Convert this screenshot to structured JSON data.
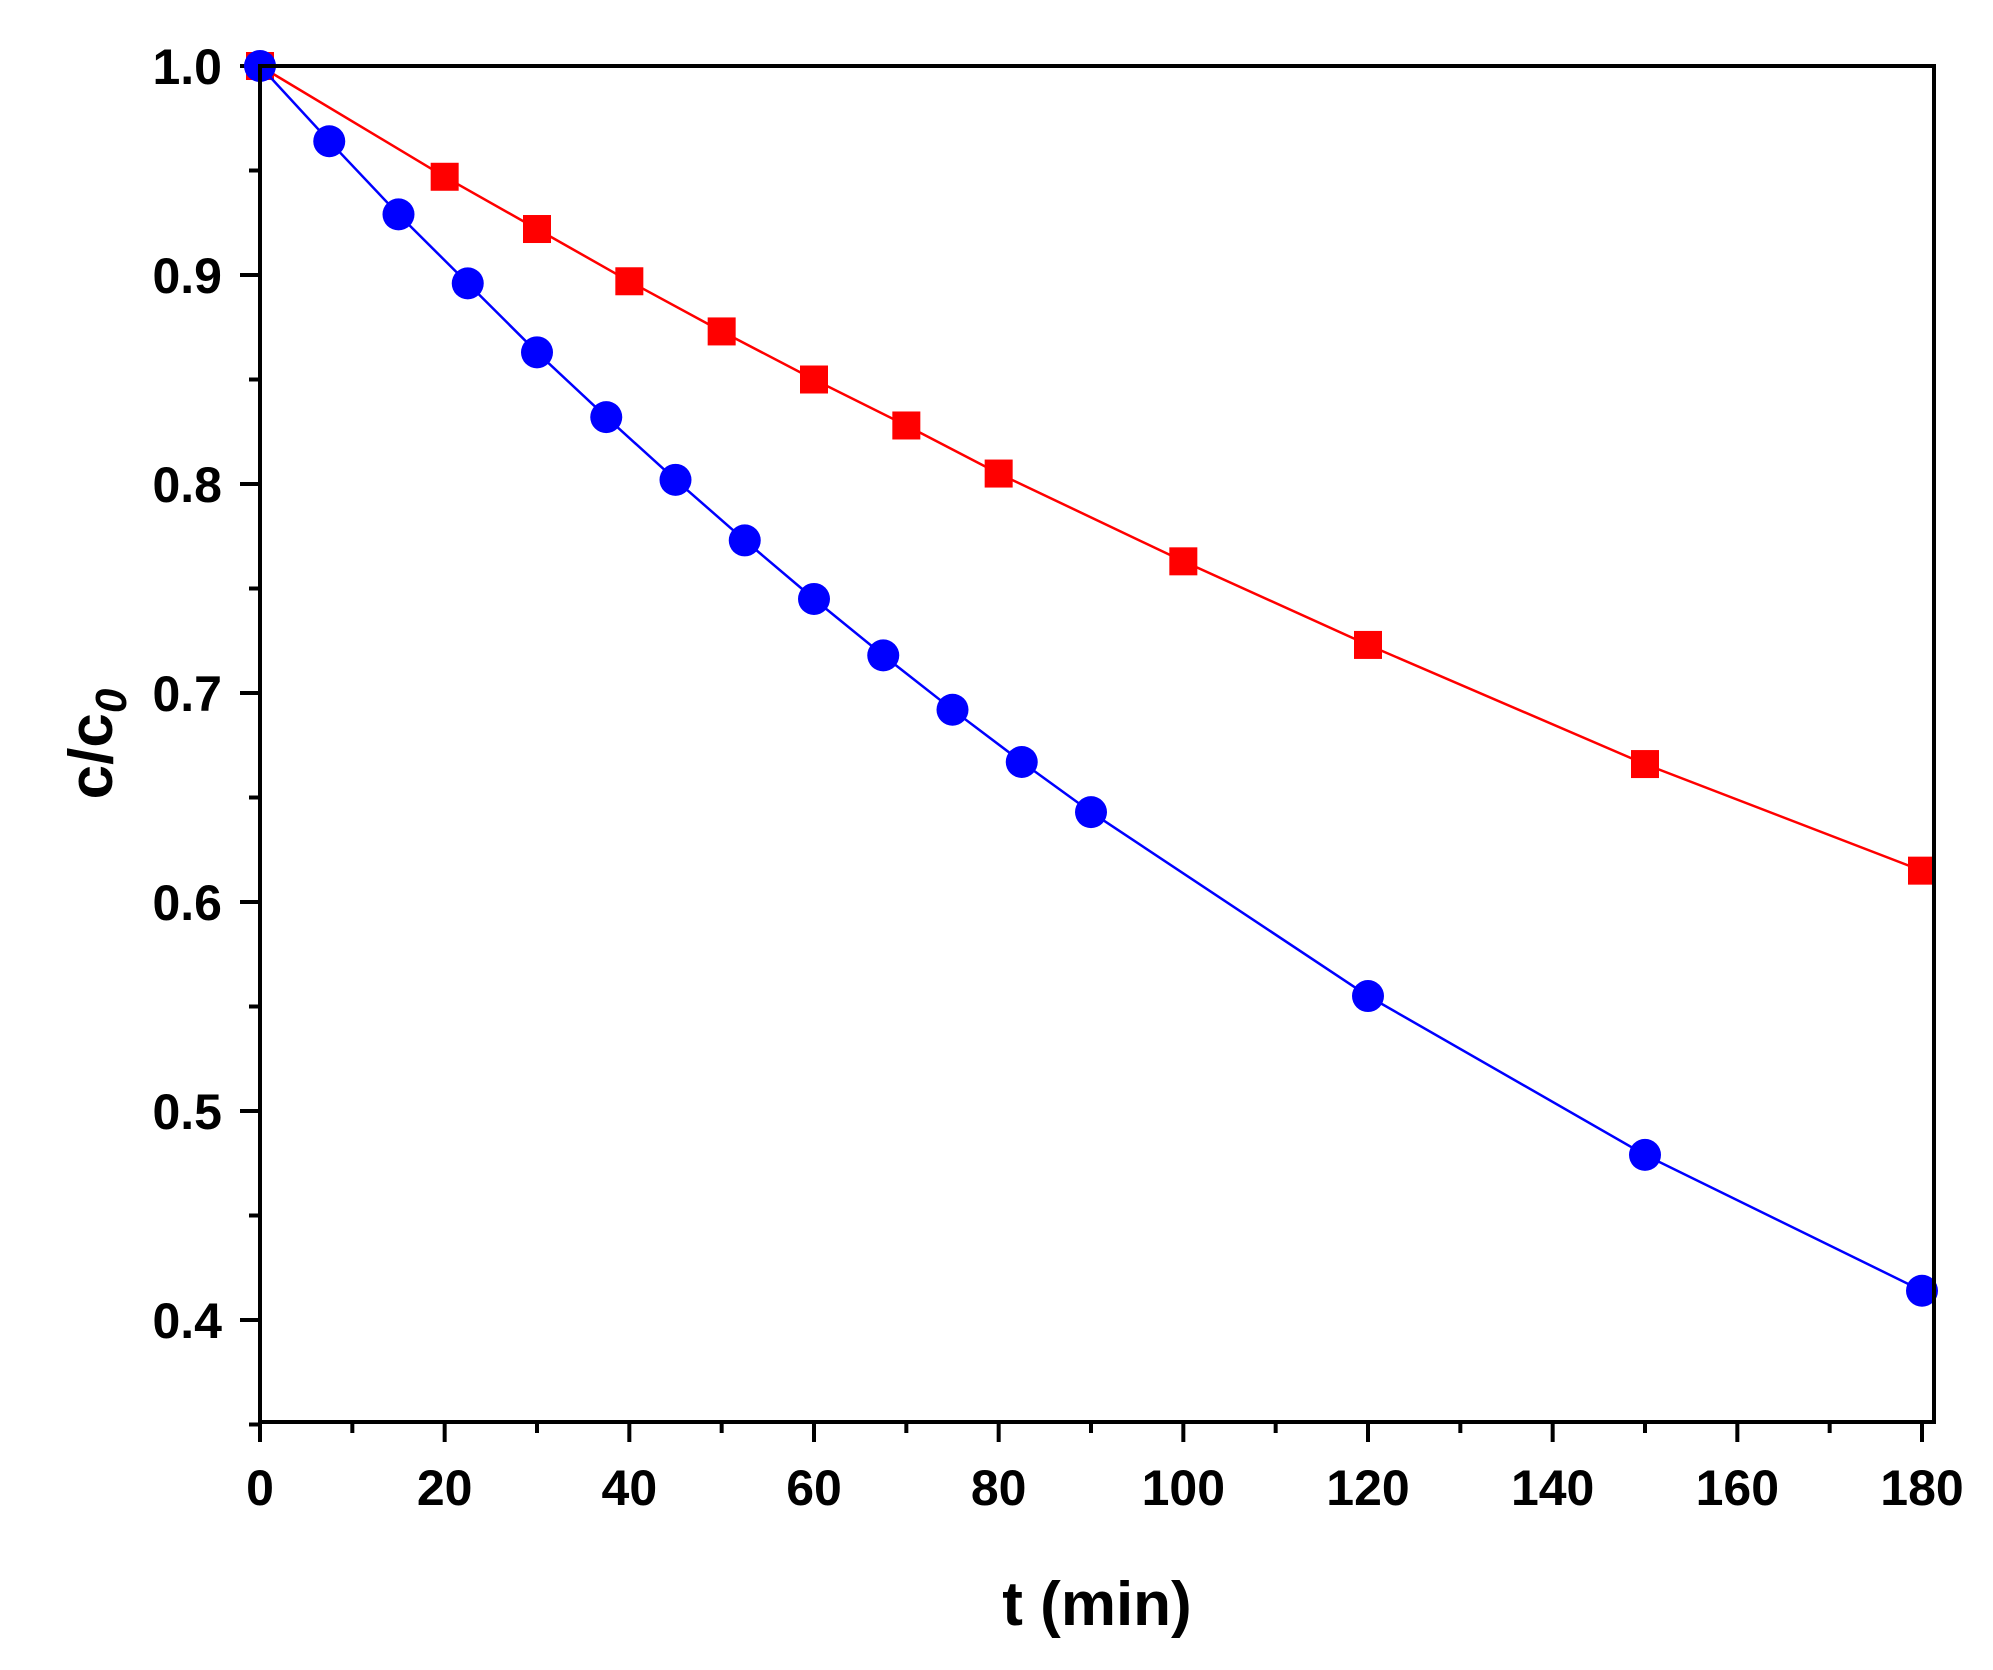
{
  "chart_data": {
    "type": "line",
    "title": "",
    "xlabel": "t (min)",
    "ylabel": {
      "main": "c/c",
      "subscript": "0"
    },
    "xlim": [
      0,
      181
    ],
    "ylim": [
      0.35,
      1.0
    ],
    "x_ticks": [
      0,
      20,
      40,
      60,
      80,
      100,
      120,
      140,
      160,
      180
    ],
    "x_tick_labels": [
      "0",
      "20",
      "40",
      "60",
      "80",
      "100",
      "120",
      "140",
      "160",
      "180"
    ],
    "x_minor_ticks": [
      10,
      30,
      50,
      70,
      90,
      110,
      130,
      150,
      170
    ],
    "y_ticks": [
      0.4,
      0.5,
      0.6,
      0.7,
      0.8,
      0.9,
      1.0
    ],
    "y_tick_labels": [
      "0.4",
      "0.5",
      "0.6",
      "0.7",
      "0.8",
      "0.9",
      "1.0"
    ],
    "y_minor_ticks": [
      0.35,
      0.45,
      0.55,
      0.65,
      0.75,
      0.85,
      0.95
    ],
    "grid": false,
    "legend": "none",
    "series": [
      {
        "name": "red squares",
        "marker": "square",
        "color": "#ff0000",
        "x": [
          0,
          20,
          30,
          40,
          50,
          60,
          70,
          80,
          100,
          120,
          150,
          180
        ],
        "y": [
          1.0,
          0.947,
          0.922,
          0.897,
          0.873,
          0.85,
          0.828,
          0.805,
          0.763,
          0.723,
          0.666,
          0.615
        ]
      },
      {
        "name": "blue circles",
        "marker": "circle",
        "color": "#0000ff",
        "x": [
          0,
          7.5,
          15,
          22.5,
          30,
          37.5,
          45,
          52.5,
          60,
          67.5,
          75,
          82.5,
          90,
          120,
          150,
          180
        ],
        "y": [
          1.0,
          0.964,
          0.929,
          0.896,
          0.863,
          0.832,
          0.802,
          0.773,
          0.745,
          0.718,
          0.692,
          0.667,
          0.643,
          0.555,
          0.479,
          0.414
        ]
      }
    ]
  }
}
